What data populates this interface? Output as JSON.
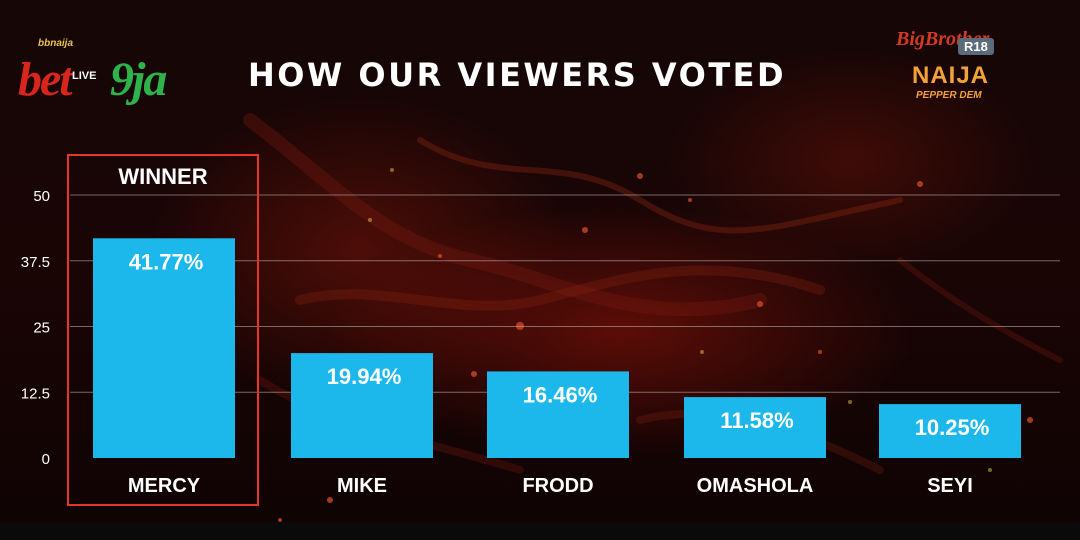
{
  "header": {
    "title": "HOW OUR VIEWERS VOTED"
  },
  "logos": {
    "left": {
      "top_text": "bbnaija",
      "brand_red": "bet",
      "brand_green": "9ja",
      "badge": "LIVE"
    },
    "right": {
      "line1": "BigBrother",
      "badge": "R18",
      "line2": "NAIJA",
      "line3": "PEPPER DEM"
    }
  },
  "winner_label": "WINNER",
  "colors": {
    "bar": "#1cb8ec",
    "winner_border": "#e8352a",
    "text": "#ffffff",
    "gridline": "#b8aaaa"
  },
  "chart_data": {
    "type": "bar",
    "categories": [
      "MERCY",
      "MIKE",
      "FRODD",
      "OMASHOLA",
      "SEYI"
    ],
    "values": [
      41.77,
      19.94,
      16.46,
      11.58,
      10.25
    ],
    "data_labels": [
      "41.77%",
      "19.94%",
      "16.46%",
      "11.58%",
      "10.25%"
    ],
    "title": "HOW OUR VIEWERS VOTED",
    "xlabel": "",
    "ylabel": "",
    "ylim": [
      0,
      50
    ],
    "yticks": [
      0,
      12.5,
      25,
      37.5,
      50
    ],
    "ytick_labels": [
      "0",
      "12.5",
      "25",
      "37.5",
      "50"
    ],
    "grid": true,
    "legend": "none"
  }
}
